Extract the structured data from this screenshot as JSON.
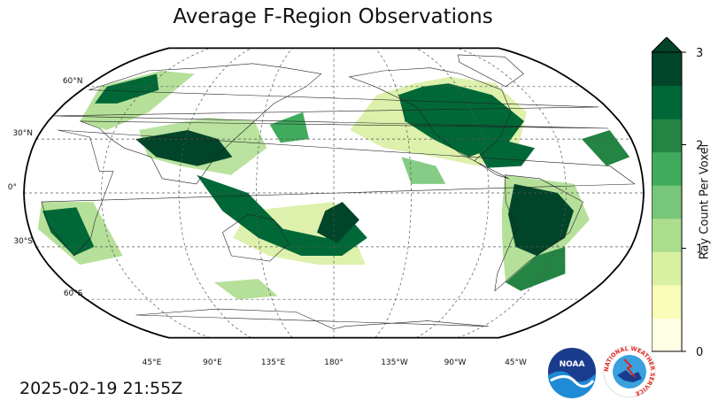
{
  "title": "Average F-Region Observations",
  "timestamp": "2025-02-19 21:55Z",
  "map": {
    "projection": "robinson",
    "central_longitude": 180,
    "lat_labels": [
      {
        "lat": 60,
        "text": "60°N"
      },
      {
        "lat": 30,
        "text": "30°N"
      },
      {
        "lat": 0,
        "text": "0°"
      },
      {
        "lat": -30,
        "text": "30°S"
      },
      {
        "lat": -60,
        "text": "60°S"
      }
    ],
    "lon_labels": [
      "45°E",
      "90°E",
      "135°E",
      "180°",
      "135°W",
      "90°W",
      "45°W"
    ]
  },
  "colorbar": {
    "label": "Ray Count Per Voxel",
    "ticks": [
      "0",
      "1",
      "2",
      "3"
    ],
    "range": [
      0,
      3
    ],
    "extend": "max",
    "colormap": "YlGn",
    "colors": [
      "#ffffe5",
      "#f7fcb9",
      "#d9f0a3",
      "#addd8e",
      "#78c679",
      "#41ab5d",
      "#238443",
      "#006837",
      "#004529"
    ]
  },
  "logos": [
    {
      "name": "NOAA",
      "text": "NOAA"
    },
    {
      "name": "National Weather Service",
      "text": "NATIONAL WEATHER SERVICE"
    }
  ]
}
